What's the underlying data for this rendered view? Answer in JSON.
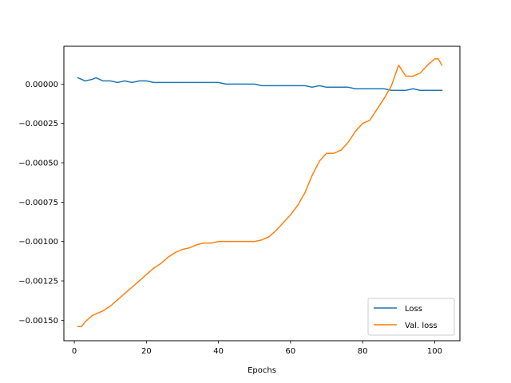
{
  "chart_data": {
    "type": "line",
    "title": "",
    "xlabel": "Epochs",
    "ylabel": "",
    "xlim": [
      -2.9,
      107.0
    ],
    "ylim": [
      -0.00163,
      0.00024
    ],
    "xticks": [
      0,
      20,
      40,
      60,
      80,
      100
    ],
    "xtick_labels": [
      "0",
      "20",
      "40",
      "60",
      "80",
      "100"
    ],
    "yticks": [
      0.0,
      -0.00025,
      -0.0005,
      -0.00075,
      -0.001,
      -0.00125,
      -0.0015
    ],
    "ytick_labels": [
      "0.00000",
      "−0.00025",
      "−0.00050",
      "−0.00075",
      "−0.00100",
      "−0.00125",
      "−0.00150"
    ],
    "grid": false,
    "legend": {
      "placement": "lower-right"
    },
    "series": [
      {
        "name": "Loss",
        "color": "#1f77b4",
        "x": [
          1,
          3,
          5,
          6,
          8,
          10,
          12,
          14,
          16,
          18,
          20,
          22,
          24,
          26,
          28,
          30,
          32,
          34,
          36,
          38,
          40,
          42,
          44,
          46,
          48,
          50,
          52,
          54,
          56,
          58,
          60,
          62,
          64,
          66,
          68,
          70,
          72,
          74,
          76,
          78,
          80,
          82,
          84,
          86,
          88,
          90,
          92,
          94,
          96,
          98,
          100,
          102
        ],
        "values": [
          4e-05,
          2e-05,
          3e-05,
          4e-05,
          2e-05,
          2e-05,
          1e-05,
          2e-05,
          1e-05,
          2e-05,
          2e-05,
          1e-05,
          1e-05,
          1e-05,
          1e-05,
          1e-05,
          1e-05,
          1e-05,
          1e-05,
          1e-05,
          1e-05,
          0.0,
          0.0,
          0.0,
          0.0,
          0.0,
          -1e-05,
          -1e-05,
          -1e-05,
          -1e-05,
          -1e-05,
          -1e-05,
          -1e-05,
          -2e-05,
          -1e-05,
          -2e-05,
          -2e-05,
          -2e-05,
          -2e-05,
          -3e-05,
          -3e-05,
          -3e-05,
          -3e-05,
          -3e-05,
          -4e-05,
          -4e-05,
          -4e-05,
          -3e-05,
          -4e-05,
          -4e-05,
          -4e-05,
          -4e-05
        ]
      },
      {
        "name": "Val. loss",
        "color": "#ff7f0e",
        "x": [
          1,
          2,
          3,
          4,
          5,
          6,
          8,
          10,
          12,
          14,
          16,
          18,
          20,
          22,
          24,
          26,
          28,
          30,
          32,
          34,
          36,
          38,
          40,
          42,
          44,
          46,
          48,
          50,
          52,
          54,
          56,
          58,
          60,
          62,
          64,
          66,
          68,
          70,
          72,
          74,
          76,
          78,
          80,
          82,
          84,
          86,
          88,
          90,
          92,
          94,
          96,
          98,
          100,
          101,
          102
        ],
        "values": [
          -0.00154,
          -0.00154,
          -0.00151,
          -0.00149,
          -0.00147,
          -0.00146,
          -0.00144,
          -0.00141,
          -0.00137,
          -0.00133,
          -0.00129,
          -0.00125,
          -0.00121,
          -0.00117,
          -0.00114,
          -0.0011,
          -0.00107,
          -0.00105,
          -0.00104,
          -0.00102,
          -0.00101,
          -0.00101,
          -0.001,
          -0.001,
          -0.001,
          -0.001,
          -0.001,
          -0.001,
          -0.00099,
          -0.00097,
          -0.00093,
          -0.00088,
          -0.00083,
          -0.00077,
          -0.00069,
          -0.00058,
          -0.00049,
          -0.00044,
          -0.00044,
          -0.00042,
          -0.00037,
          -0.0003,
          -0.00025,
          -0.00023,
          -0.00016,
          -9e-05,
          -1e-05,
          0.00012,
          5e-05,
          5e-05,
          7e-05,
          0.00012,
          0.00016,
          0.00016,
          0.00012
        ]
      }
    ]
  }
}
